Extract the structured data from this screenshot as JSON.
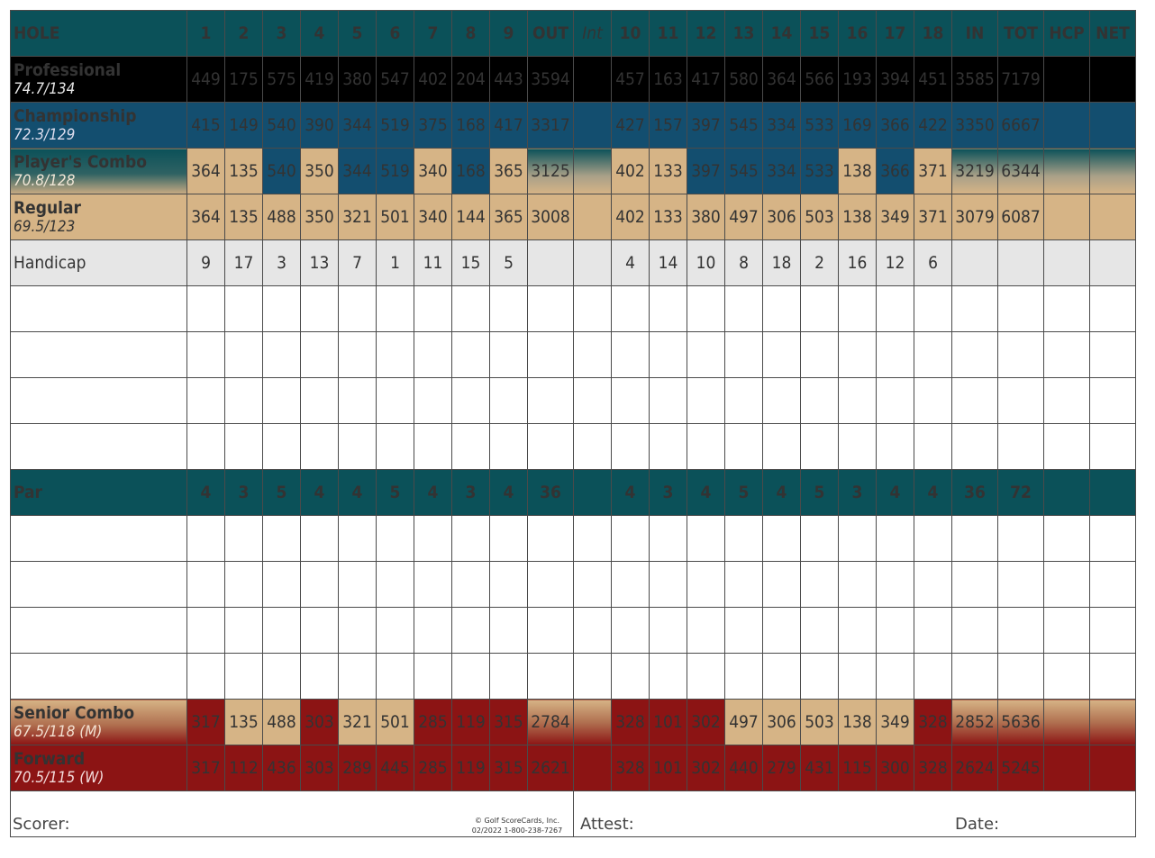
{
  "header": {
    "hole": "HOLE",
    "front": [
      "1",
      "2",
      "3",
      "4",
      "5",
      "6",
      "7",
      "8",
      "9"
    ],
    "out": "OUT",
    "int": "Int",
    "back": [
      "10",
      "11",
      "12",
      "13",
      "14",
      "15",
      "16",
      "17",
      "18"
    ],
    "in": "IN",
    "tot": "TOT",
    "hcp": "HCP",
    "net": "NET"
  },
  "tees": [
    {
      "name": "Professional",
      "rating": "74.7/134",
      "front": [
        "449",
        "175",
        "575",
        "419",
        "380",
        "547",
        "402",
        "204",
        "443"
      ],
      "out": "3594",
      "back": [
        "457",
        "163",
        "417",
        "580",
        "364",
        "566",
        "193",
        "394",
        "451"
      ],
      "in": "3585",
      "tot": "7179"
    },
    {
      "name": "Championship",
      "rating": "72.3/129",
      "front": [
        "415",
        "149",
        "540",
        "390",
        "344",
        "519",
        "375",
        "168",
        "417"
      ],
      "out": "3317",
      "back": [
        "427",
        "157",
        "397",
        "545",
        "334",
        "533",
        "169",
        "366",
        "422"
      ],
      "in": "3350",
      "tot": "6667"
    },
    {
      "name": "Player's Combo",
      "rating": "70.8/128",
      "front": [
        "364",
        "135",
        "540",
        "350",
        "344",
        "519",
        "340",
        "168",
        "365"
      ],
      "out": "3125",
      "back": [
        "402",
        "133",
        "397",
        "545",
        "334",
        "533",
        "138",
        "366",
        "371"
      ],
      "in": "3219",
      "tot": "6344"
    },
    {
      "name": "Regular",
      "rating": "69.5/123",
      "front": [
        "364",
        "135",
        "488",
        "350",
        "321",
        "501",
        "340",
        "144",
        "365"
      ],
      "out": "3008",
      "back": [
        "402",
        "133",
        "380",
        "497",
        "306",
        "503",
        "138",
        "349",
        "371"
      ],
      "in": "3079",
      "tot": "6087"
    }
  ],
  "handicap": {
    "label": "Handicap",
    "front": [
      "9",
      "17",
      "3",
      "13",
      "7",
      "1",
      "11",
      "15",
      "5"
    ],
    "back": [
      "4",
      "14",
      "10",
      "8",
      "18",
      "2",
      "16",
      "12",
      "6"
    ]
  },
  "par": {
    "label": "Par",
    "front": [
      "4",
      "3",
      "5",
      "4",
      "4",
      "5",
      "4",
      "3",
      "4"
    ],
    "out": "36",
    "back": [
      "4",
      "3",
      "4",
      "5",
      "4",
      "5",
      "3",
      "4",
      "4"
    ],
    "in": "36",
    "tot": "72"
  },
  "lower_tees": [
    {
      "name": "Senior Combo",
      "rating": "67.5/118 (M)",
      "front": [
        "317",
        "135",
        "488",
        "303",
        "321",
        "501",
        "285",
        "119",
        "315"
      ],
      "out": "2784",
      "back": [
        "328",
        "101",
        "302",
        "497",
        "306",
        "503",
        "138",
        "349",
        "328"
      ],
      "in": "2852",
      "tot": "5636"
    },
    {
      "name": "Forward",
      "rating": "70.5/115 (W)",
      "front": [
        "317",
        "112",
        "436",
        "303",
        "289",
        "445",
        "285",
        "119",
        "315"
      ],
      "out": "2621",
      "back": [
        "328",
        "101",
        "302",
        "440",
        "279",
        "431",
        "115",
        "300",
        "328"
      ],
      "in": "2624",
      "tot": "5245"
    }
  ],
  "footer": {
    "scorer": "Scorer:",
    "attest": "Attest:",
    "date": "Date:",
    "copyright_line1": "© Golf ScoreCards, Inc.",
    "copyright_line2": "02/2022 1-800-238-7267"
  },
  "colors": {
    "teal": "#0b5159",
    "blue": "#134e6f",
    "tan": "#d6b486",
    "red": "#8c1414",
    "black": "#000000",
    "grey": "#e6e6e6"
  }
}
